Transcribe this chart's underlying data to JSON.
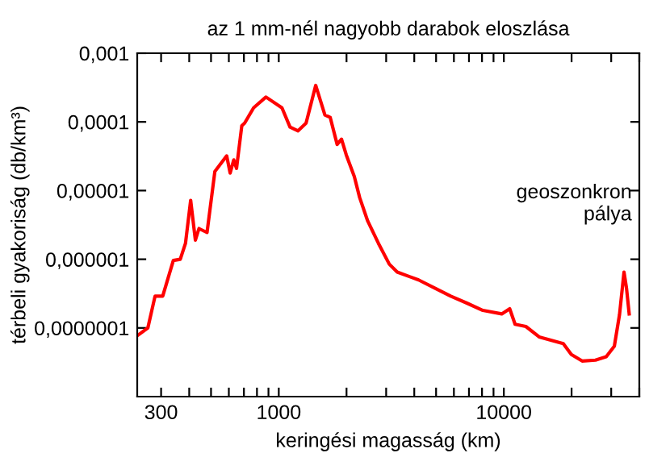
{
  "chart_data": {
    "type": "line",
    "title": "az 1 mm-nél nagyobb darabok eloszlása",
    "xlabel": "keringési magasság (km)",
    "ylabel": "térbeli gyakoriság (db/km³)",
    "log": "xy",
    "grid": false,
    "legend": false,
    "marker": "none",
    "line_style": "solid",
    "xlim": [
      235,
      40000
    ],
    "ylim": [
      1e-08,
      0.001
    ],
    "xticks": [
      300,
      {
        "value": 400,
        "label": null
      },
      {
        "value": 500,
        "label": null
      },
      {
        "value": 600,
        "label": null
      },
      {
        "value": 700,
        "label": null
      },
      {
        "value": 800,
        "label": null
      },
      {
        "value": 900,
        "label": null
      },
      1000,
      {
        "value": 2000,
        "label": null
      },
      {
        "value": 3000,
        "label": null
      },
      {
        "value": 4000,
        "label": null
      },
      {
        "value": 5000,
        "label": null
      },
      {
        "value": 6000,
        "label": null
      },
      {
        "value": 7000,
        "label": null
      },
      {
        "value": 8000,
        "label": null
      },
      {
        "value": 9000,
        "label": null
      },
      10000,
      {
        "value": 20000,
        "label": null
      },
      {
        "value": 30000,
        "label": null
      },
      {
        "value": 40000,
        "label": null
      }
    ],
    "yticks": [
      {
        "value": 1e-07,
        "label": "0,0000001"
      },
      {
        "value": 1e-06,
        "label": "0,000001"
      },
      {
        "value": 1e-05,
        "label": "0,00001"
      },
      {
        "value": 0.0001,
        "label": "0,0001"
      },
      {
        "value": 0.001,
        "label": "0,001"
      }
    ],
    "annotations": [
      "geoszonkron\npálya"
    ],
    "series": [
      {
        "color": "#ff0000",
        "x": [
          235,
          262,
          282,
          305,
          340,
          365,
          385,
          406,
          426,
          442,
          480,
          520,
          587,
          608,
          631,
          649,
          685,
          705,
          773,
          877,
          1033,
          1122,
          1218,
          1322,
          1459,
          1603,
          1693,
          1817,
          1900,
          1995,
          2166,
          2288,
          2484,
          2773,
          3097,
          3360,
          4180,
          4932,
          5810,
          6850,
          8070,
          9790,
          10620,
          11220,
          12530,
          14350,
          18370,
          19950,
          22280,
          25530,
          28510,
          30970,
          32660,
          34200,
          35080,
          36060
        ],
        "values": [
          7.7e-08,
          1e-07,
          2.9e-07,
          2.9e-07,
          9.6e-07,
          1e-06,
          1.7e-06,
          7.2e-06,
          1.9e-06,
          2.8e-06,
          2.45e-06,
          1.9e-05,
          3.2e-05,
          1.8e-05,
          2.8e-05,
          2.1e-05,
          8.8e-05,
          9.6e-05,
          0.00016,
          0.00023,
          0.00016,
          8.4e-05,
          7.4e-05,
          9.6e-05,
          0.00034,
          0.000126,
          0.000116,
          4.7e-05,
          5.6e-05,
          3.3e-05,
          1.6e-05,
          7.9e-06,
          3.6e-06,
          1.7e-06,
          8.5e-07,
          6.5e-07,
          5e-07,
          3.8e-07,
          2.9e-07,
          2.3e-07,
          1.8e-07,
          1.6e-07,
          1.9e-07,
          1.13e-07,
          1.05e-07,
          7.4e-08,
          5.9e-08,
          4.1e-08,
          3.3e-08,
          3.4e-08,
          3.8e-08,
          5.4e-08,
          1.56e-07,
          6.5e-07,
          3.8e-07,
          1.6e-07
        ]
      }
    ]
  }
}
